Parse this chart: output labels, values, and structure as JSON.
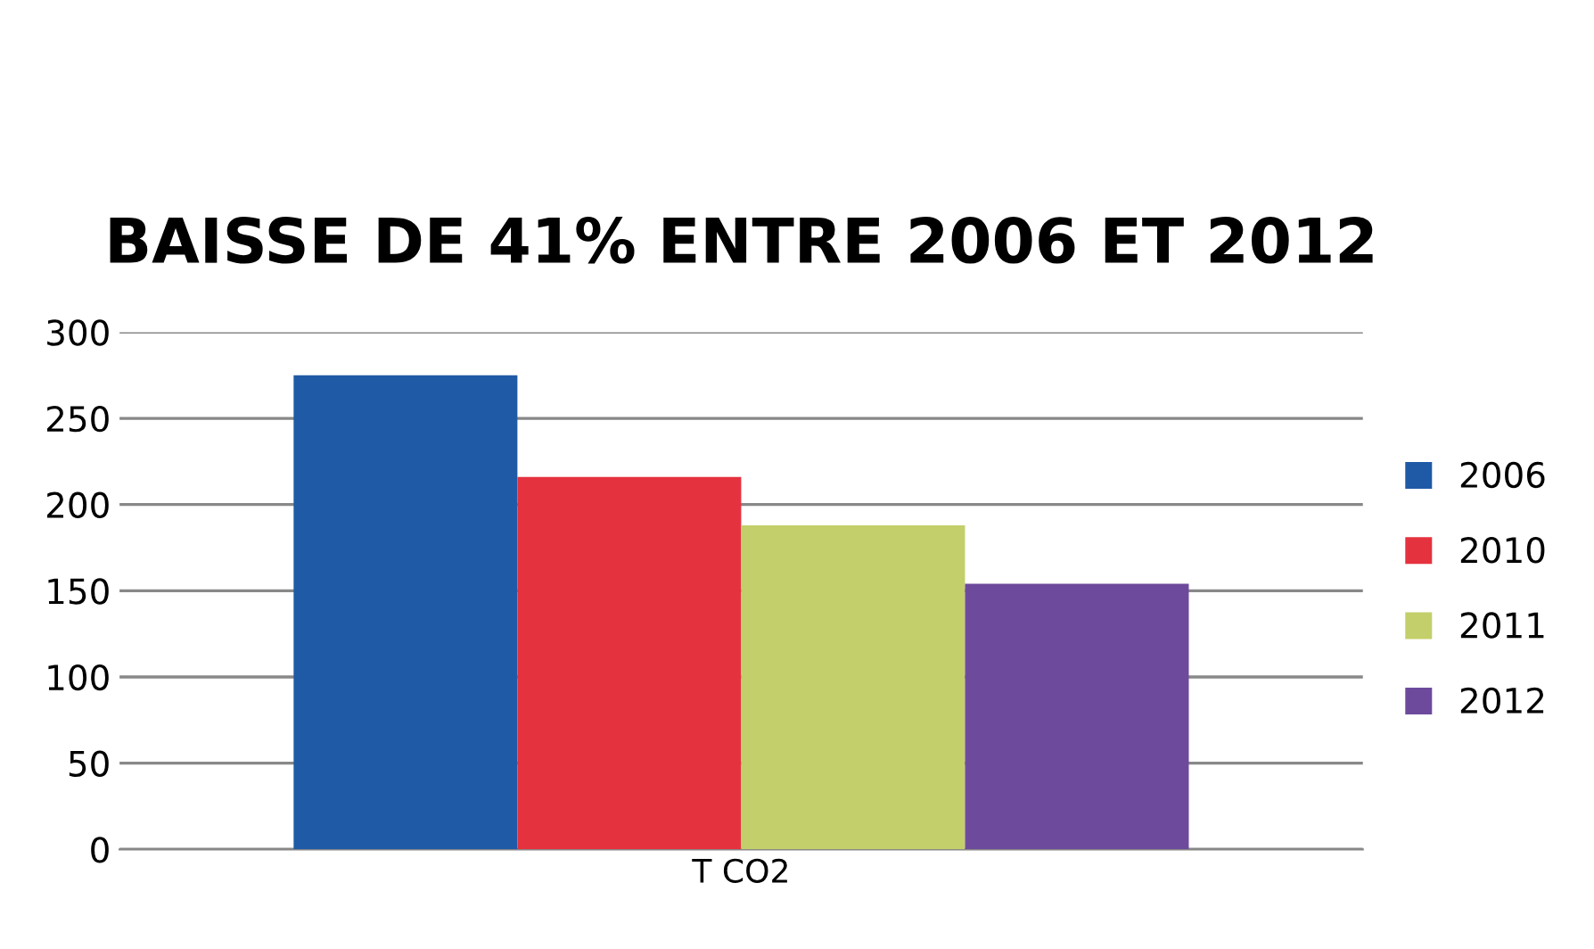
{
  "chart_data": {
    "type": "bar",
    "title": "BAISSE DE 41% ENTRE 2006 ET 2012",
    "categories": [
      "T CO2"
    ],
    "series": [
      {
        "name": "2006",
        "color": "#1f5aa6",
        "values": [
          275
        ]
      },
      {
        "name": "2010",
        "color": "#e5323f",
        "values": [
          216
        ]
      },
      {
        "name": "2011",
        "color": "#c3cf6a",
        "values": [
          188
        ]
      },
      {
        "name": "2012",
        "color": "#6e4a9c",
        "values": [
          154
        ]
      }
    ],
    "ylim": [
      0,
      300
    ],
    "yticks": [
      0,
      50,
      100,
      150,
      200,
      250,
      300
    ],
    "grid": "y",
    "legend": "right"
  }
}
